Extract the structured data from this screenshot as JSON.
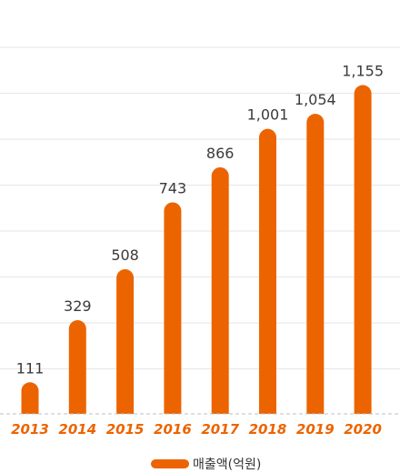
{
  "chart_data": {
    "type": "bar",
    "categories": [
      "2013",
      "2014",
      "2015",
      "2016",
      "2017",
      "2018",
      "2019",
      "2020"
    ],
    "series": [
      {
        "name": "매출액(억원)",
        "values": [
          111,
          329,
          508,
          743,
          866,
          1001,
          1054,
          1155
        ]
      }
    ],
    "value_labels": [
      "111",
      "329",
      "508",
      "743",
      "866",
      "1,001",
      "1,054",
      "1,155"
    ],
    "title": "",
    "xlabel": "",
    "ylabel": "",
    "ylim": [
      0,
      1300
    ],
    "grid": true,
    "legend_position": "bottom-center",
    "colors": {
      "bar": "#ec6400",
      "tick_label": "#ec6400"
    }
  }
}
